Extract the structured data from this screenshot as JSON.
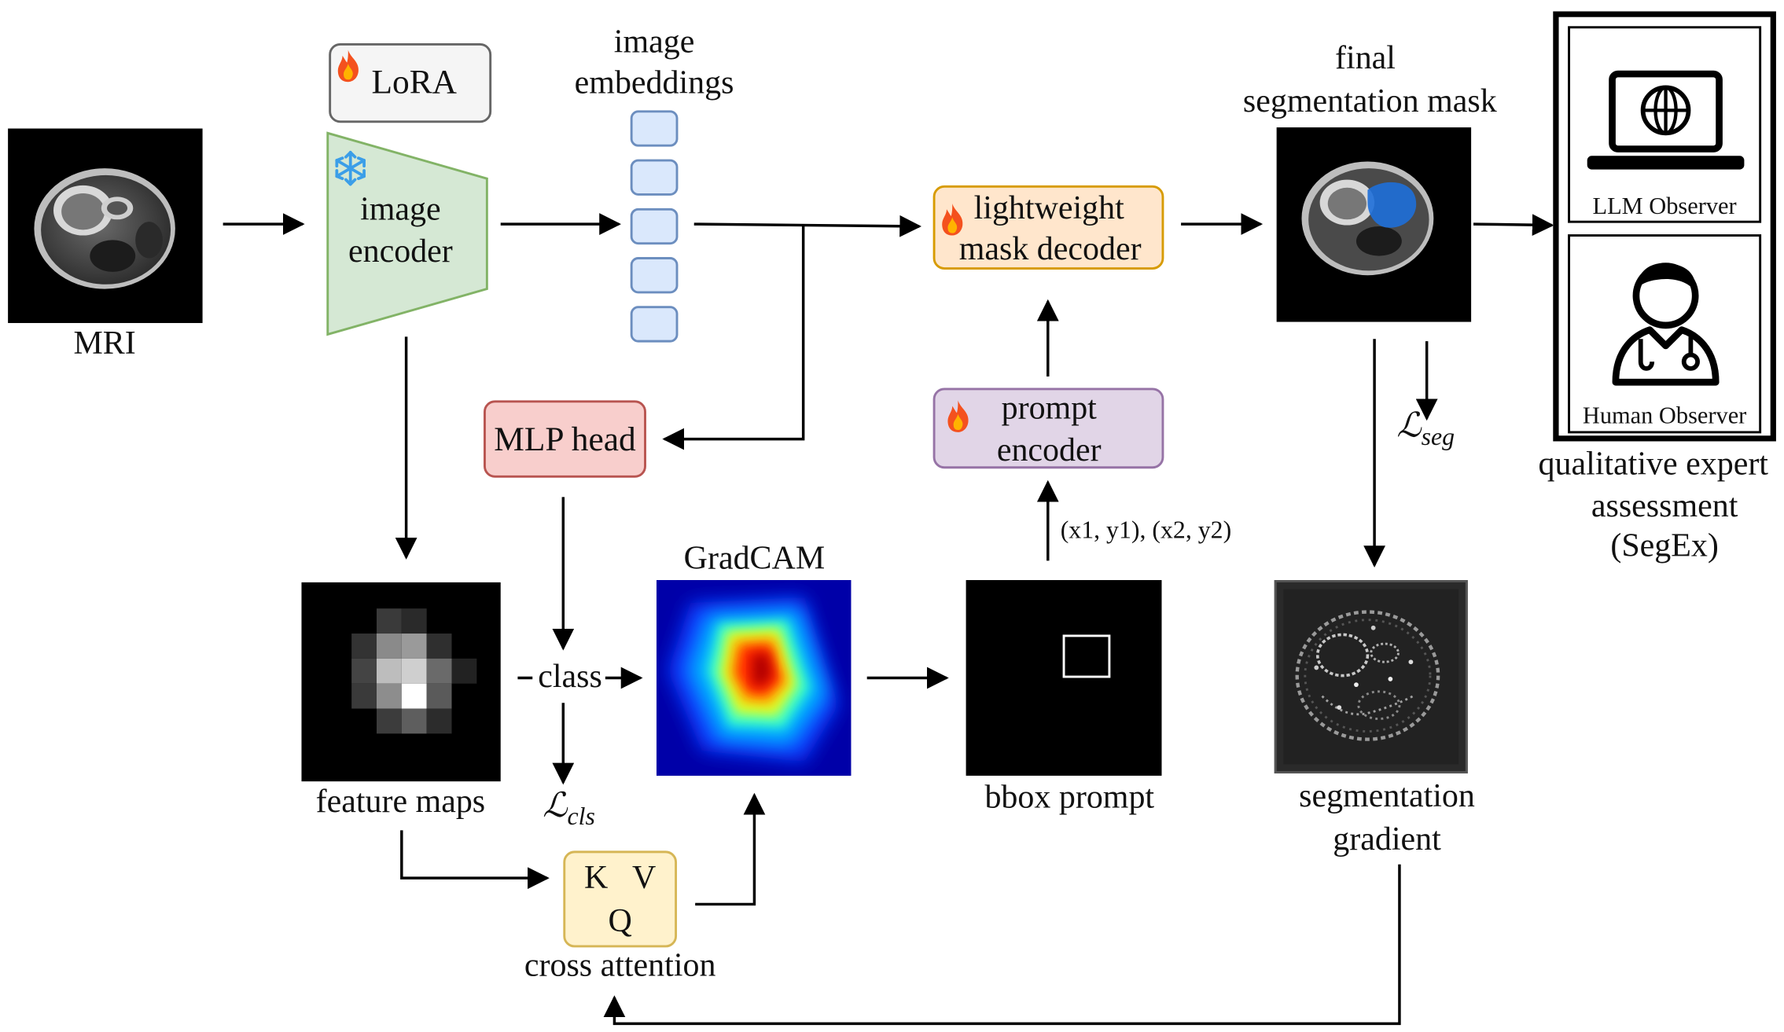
{
  "labels": {
    "mri": "MRI",
    "lora": "LoRA",
    "image_encoder_l1": "image",
    "image_encoder_l2": "encoder",
    "image_embeddings_l1": "image",
    "image_embeddings_l2": "embeddings",
    "final_mask_l1": "final",
    "final_mask_l2": "segmentation mask",
    "decoder_l1": "lightweight",
    "decoder_l2": "mask decoder",
    "prompt_encoder_l1": "prompt",
    "prompt_encoder_l2": "encoder",
    "mlp_head": "MLP head",
    "gradcam": "GradCAM",
    "feature_maps": "feature maps",
    "class": "class",
    "loss_cls_main": "ℒ",
    "loss_cls_sub": "cls",
    "loss_seg_main": "ℒ",
    "loss_seg_sub": "seg",
    "bbox_coords": "(x1, y1), (x2, y2)",
    "bbox_prompt": "bbox prompt",
    "seg_gradient_l1": "segmentation",
    "seg_gradient_l2": "gradient",
    "kv": "K   V",
    "q": "Q",
    "cross_attention": "cross attention",
    "llm_observer": "LLM Observer",
    "human_observer": "Human Observer",
    "assessment_l1": "qualitative expert",
    "assessment_l2": "assessment",
    "assessment_l3": "(SegEx)"
  },
  "icons": {
    "trainable": "flame-icon",
    "frozen": "snowflake-icon",
    "llm": "laptop-globe-icon",
    "human": "doctor-icon"
  },
  "colors": {
    "encoder_fill": "#d5e8d4",
    "encoder_border": "#82b366",
    "embedding_fill": "#dae8fc",
    "embedding_border": "#6c8ebf",
    "decoder_fill": "#ffe6cc",
    "decoder_border": "#d79b00",
    "prompt_fill": "#e1d5e7",
    "prompt_border": "#9673a6",
    "mlp_fill": "#f8cecc",
    "mlp_border": "#b85450",
    "attention_fill": "#fff2cc",
    "attention_border": "#d6b656",
    "lora_fill": "#f5f5f5",
    "lora_border": "#666666",
    "mask_overlay": "#1e6fd9"
  }
}
